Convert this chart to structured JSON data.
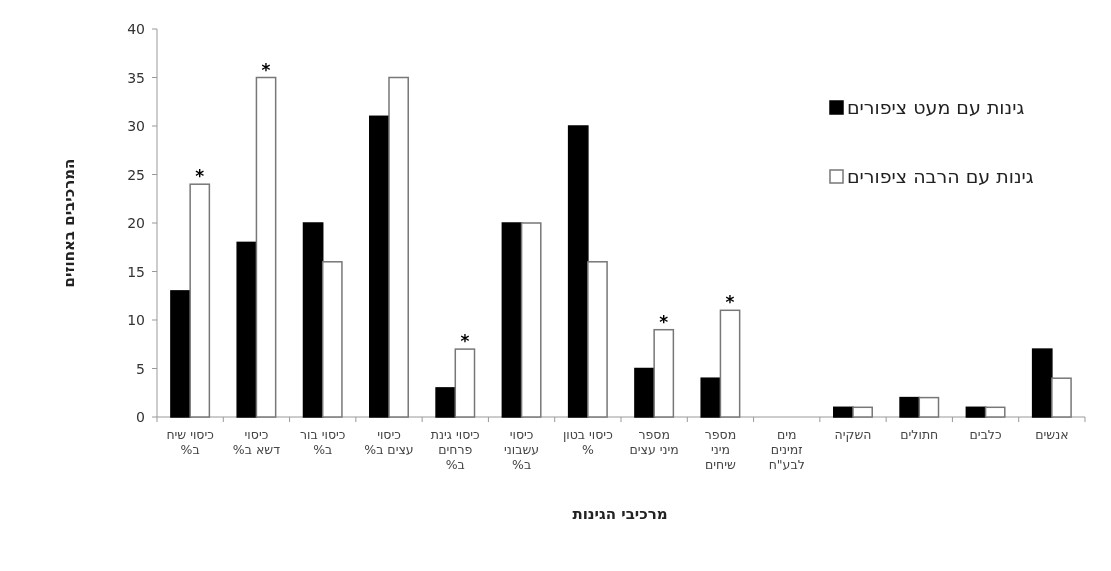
{
  "chart_data": {
    "type": "bar",
    "xlabel": "מרכיבי הגינות",
    "ylabel": "המרכיבים באחוזים",
    "categories": [
      "כיסוי שיח\nב%",
      "כיסוי\nדשא ב%",
      "כיסוי בור\nב%",
      "כיסוי\nעצים ב%",
      "כיסוי גינת\nפרחים\nב%",
      "כיסוי\nעשבוני\nב%",
      "כיסוי בטון\n%",
      "מספר\nמיני עצים",
      "מספר\nמיני\nשיחים",
      "מים\nזמינים\nלבע\"ח",
      "השקיה",
      "חתולים",
      "כלבים",
      "אנשים"
    ],
    "series": [
      {
        "name": "גינות עם מעט ציפורים",
        "color": "#000000",
        "values": [
          13,
          18,
          20,
          31,
          3,
          20,
          30,
          5,
          4,
          null,
          1,
          2,
          1,
          7
        ]
      },
      {
        "name": "גינות עם הרבה ציפורים",
        "color": "#ffffff",
        "values": [
          24,
          35,
          16,
          35,
          7,
          20,
          16,
          9,
          11,
          null,
          1,
          2,
          1,
          4
        ]
      }
    ],
    "ylim": [
      0,
      40
    ],
    "yticks": [
      0,
      5,
      10,
      15,
      20,
      25,
      30,
      35,
      40
    ],
    "grid": false,
    "legend": "right",
    "annotations": [
      {
        "text": "*",
        "x": "כיסוי שיח\nב%",
        "y": 24
      },
      {
        "text": "*",
        "x": "כיסוי\nדשא ב%",
        "y": 35
      },
      {
        "text": "*",
        "x": "כיסוי גינת\nפרחים\nב%",
        "y": 7
      },
      {
        "text": "*",
        "x": "מספר\nמיני עצים",
        "y": 9
      },
      {
        "text": "*",
        "x": "מספר\nמיני\nשיחים",
        "y": 11
      }
    ]
  }
}
